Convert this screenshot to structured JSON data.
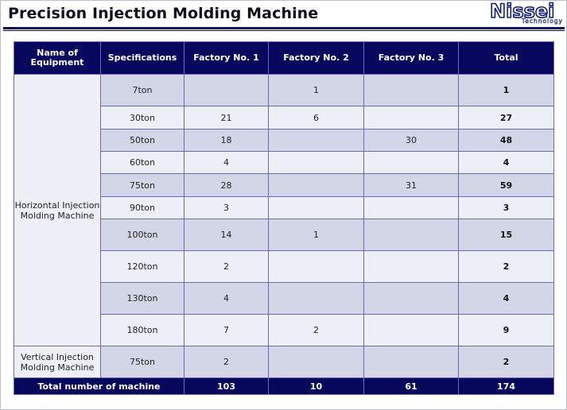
{
  "header": {
    "title": "Precision Injection Molding Machine",
    "logo_main": "Nissei",
    "logo_sub": "Technology"
  },
  "table": {
    "columns": [
      "Name of Equipment",
      "Specifications",
      "Factory No. 1",
      "Factory No. 2",
      "Factory No. 3",
      "Total"
    ],
    "groups": [
      {
        "name": "Horizontal Injection Molding Machine",
        "rows": [
          {
            "spec": "7ton",
            "f1": "",
            "f2": "1",
            "f3": "",
            "total": "1"
          },
          {
            "spec": "30ton",
            "f1": "21",
            "f2": "6",
            "f3": "",
            "total": "27"
          },
          {
            "spec": "50ton",
            "f1": "18",
            "f2": "",
            "f3": "30",
            "total": "48"
          },
          {
            "spec": "60ton",
            "f1": "4",
            "f2": "",
            "f3": "",
            "total": "4"
          },
          {
            "spec": "75ton",
            "f1": "28",
            "f2": "",
            "f3": "31",
            "total": "59"
          },
          {
            "spec": "90ton",
            "f1": "3",
            "f2": "",
            "f3": "",
            "total": "3"
          },
          {
            "spec": "100ton",
            "f1": "14",
            "f2": "1",
            "f3": "",
            "total": "15"
          },
          {
            "spec": "120ton",
            "f1": "2",
            "f2": "",
            "f3": "",
            "total": "2"
          },
          {
            "spec": "130ton",
            "f1": "4",
            "f2": "",
            "f3": "",
            "total": "4"
          },
          {
            "spec": "180ton",
            "f1": "7",
            "f2": "2",
            "f3": "",
            "total": "9"
          }
        ]
      },
      {
        "name": "Vertical Injection Molding Machine",
        "rows": [
          {
            "spec": "75ton",
            "f1": "2",
            "f2": "",
            "f3": "",
            "total": "2"
          }
        ]
      }
    ],
    "footer": {
      "label": "Total number of machine",
      "f1": "103",
      "f2": "10",
      "f3": "61",
      "total": "174"
    }
  }
}
